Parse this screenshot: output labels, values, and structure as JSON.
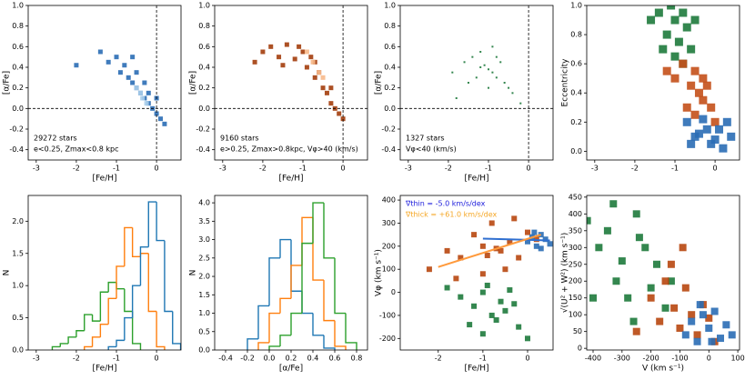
{
  "chart_data": [
    {
      "type": "scatter",
      "xlabel": "[Fe/H]",
      "ylabel": "[α/Fe]",
      "xlim": [
        -3.2,
        0.61
      ],
      "ylim": [
        -0.5,
        1.0
      ],
      "xticks": [
        -3,
        -2,
        -1,
        0
      ],
      "yticks": [
        -0.4,
        -0.2,
        {
          "value": 0,
          "label": "0.0"
        },
        0.2,
        0.4,
        0.6,
        0.8,
        {
          "value": 1,
          "label": "1.0"
        }
      ],
      "hlines": [
        0
      ],
      "vlines": [
        0
      ],
      "marker_size": 5,
      "annotation_corner": "lower left",
      "annotations": [
        {
          "text": "29272 stars",
          "color": "#000000"
        },
        {
          "text": "e<0.25, Zmax<0.8 kpc",
          "color": "#000000"
        }
      ],
      "series": [
        {
          "color": "#2a6db5",
          "x": [
            -1.2,
            -1.0,
            -0.9,
            -0.8,
            -0.7,
            -0.6,
            -0.5,
            -0.4,
            -0.3,
            -0.2,
            -0.1,
            0.0,
            0.1,
            0.2,
            -0.5,
            -0.3,
            -0.6,
            -0.2,
            0.0,
            -1.4,
            -2.0
          ],
          "y": [
            0.45,
            0.5,
            0.35,
            0.42,
            0.3,
            0.25,
            0.35,
            0.15,
            0.1,
            0.05,
            0.0,
            -0.05,
            -0.1,
            -0.15,
            0.2,
            0.25,
            0.5,
            0.15,
            0.1,
            0.55,
            0.42
          ]
        },
        {
          "color": "#a9cdea",
          "x": [
            -0.5,
            -0.35,
            -0.25,
            -0.4
          ],
          "y": [
            0.2,
            0.1,
            0.05,
            0.15
          ]
        }
      ]
    },
    {
      "type": "scatter",
      "xlabel": "[Fe/H]",
      "ylabel": "[α/Fe]",
      "xlim": [
        -3.2,
        0.61
      ],
      "ylim": [
        -0.5,
        1.0
      ],
      "xticks": [
        -3,
        -2,
        -1,
        0
      ],
      "yticks": [
        -0.4,
        -0.2,
        {
          "value": 0,
          "label": "0.0"
        },
        0.2,
        0.4,
        0.6,
        0.8,
        {
          "value": 1,
          "label": "1.0"
        }
      ],
      "hlines": [
        0
      ],
      "vlines": [
        0
      ],
      "marker_size": 5,
      "annotation_corner": "lower left",
      "annotations": [
        {
          "text": "9160 stars",
          "color": "#000000"
        },
        {
          "text": "e>0.25, Zmax>0.8kpc, Vφ>40 (km/s)",
          "color": "#000000"
        }
      ],
      "series": [
        {
          "color": "#a33d0c",
          "x": [
            -2.0,
            -1.8,
            -1.6,
            -1.4,
            -1.2,
            -1.0,
            -0.9,
            -0.8,
            -0.7,
            -0.6,
            -0.5,
            -0.4,
            -0.3,
            -0.2,
            -0.1,
            0.0,
            -1.5,
            -1.1,
            -0.7,
            -0.3,
            -2.2
          ],
          "y": [
            0.55,
            0.6,
            0.5,
            0.62,
            0.48,
            0.55,
            0.4,
            0.5,
            0.3,
            0.35,
            0.2,
            0.15,
            0.05,
            0.0,
            -0.05,
            -0.1,
            0.42,
            0.6,
            0.45,
            0.2,
            0.45
          ]
        },
        {
          "color": "#f7b98b",
          "x": [
            -0.9,
            -0.75,
            -0.6,
            -0.5
          ],
          "y": [
            0.55,
            0.45,
            0.35,
            0.3
          ]
        }
      ]
    },
    {
      "type": "scatter",
      "xlabel": "[Fe/H]",
      "ylabel": "[α/Fe]",
      "xlim": [
        -3.2,
        0.61
      ],
      "ylim": [
        -0.5,
        1.0
      ],
      "xticks": [
        -3,
        -2,
        -1,
        0
      ],
      "yticks": [
        -0.4,
        -0.2,
        {
          "value": 0,
          "label": "0.0"
        },
        0.2,
        0.4,
        0.6,
        0.8,
        {
          "value": 1,
          "label": "1.0"
        }
      ],
      "hlines": [
        0
      ],
      "vlines": [
        0
      ],
      "marker_size": 2,
      "annotation_corner": "lower left",
      "annotations": [
        {
          "text": "1327 stars",
          "color": "#000000"
        },
        {
          "text": "Vφ<40 (km/s)",
          "color": "#000000"
        }
      ],
      "series": [
        {
          "color": "#1e7a3c",
          "x": [
            -1.9,
            -1.6,
            -1.4,
            -1.3,
            -1.2,
            -1.1,
            -1.0,
            -0.9,
            -0.8,
            -0.7,
            -0.6,
            -0.5,
            -1.5,
            -1.0,
            -0.8,
            -1.2,
            -0.4,
            -0.2,
            -1.8,
            -0.9
          ],
          "y": [
            0.35,
            0.45,
            0.5,
            0.3,
            0.55,
            0.42,
            0.38,
            0.6,
            0.3,
            0.45,
            0.25,
            0.2,
            0.25,
            0.2,
            0.5,
            0.4,
            0.15,
            0.05,
            0.1,
            0.35
          ]
        }
      ]
    },
    {
      "type": "scatter",
      "ylabel": "Eccentricity",
      "xlim": [
        -3.2,
        0.61
      ],
      "ylim": [
        -0.06,
        1.0
      ],
      "xticks": [
        -3,
        -2,
        -1,
        0
      ],
      "yticks": [
        {
          "value": 0,
          "label": "0.0"
        },
        0.2,
        0.4,
        0.6,
        0.8,
        {
          "value": 1,
          "label": "1.0"
        }
      ],
      "marker_size": 9,
      "series": [
        {
          "color": "#1e7a3c",
          "x": [
            -1.6,
            -1.4,
            -1.2,
            -1.1,
            -1.0,
            -0.9,
            -0.8,
            -0.7,
            -0.6,
            -0.5,
            -1.3,
            -1.0,
            -0.8
          ],
          "y": [
            0.9,
            0.95,
            0.8,
            1.0,
            0.9,
            0.75,
            0.95,
            0.85,
            0.7,
            0.9,
            0.7,
            0.65,
            0.6
          ]
        },
        {
          "color": "#c4501a",
          "x": [
            -1.2,
            -1.0,
            -0.8,
            -0.6,
            -0.5,
            -0.4,
            -0.3,
            -0.2,
            -0.7,
            -0.5,
            -0.3,
            -0.1,
            0.0
          ],
          "y": [
            0.55,
            0.5,
            0.6,
            0.45,
            0.55,
            0.4,
            0.35,
            0.45,
            0.3,
            0.25,
            0.5,
            0.3,
            0.2
          ]
        },
        {
          "color": "#2a6db5",
          "x": [
            -0.7,
            -0.5,
            -0.3,
            -0.1,
            0.1,
            0.3,
            0.4,
            -0.6,
            -0.4,
            -0.2,
            0.0,
            0.2
          ],
          "y": [
            0.2,
            0.1,
            0.22,
            0.05,
            0.15,
            0.2,
            0.1,
            0.05,
            0.12,
            0.15,
            0.08,
            0.02
          ]
        }
      ]
    },
    {
      "type": "histogram",
      "xlabel": "[Fe/H]",
      "ylabel": "N",
      "xlim": [
        -3.2,
        0.61
      ],
      "ylim": [
        0,
        2.4
      ],
      "xticks": [
        -3,
        -2,
        -1,
        0
      ],
      "yticks": [
        {
          "value": 0,
          "label": "0.0"
        },
        0.5,
        {
          "value": 1,
          "label": "1.0"
        },
        1.5,
        {
          "value": 2,
          "label": "2.0"
        }
      ],
      "series": [
        {
          "color": "#2ca02c",
          "bins": [
            -2.6,
            -2.4,
            -2.2,
            -2.0,
            -1.8,
            -1.6,
            -1.4,
            -1.2,
            -1.0,
            -0.8,
            -0.6,
            -0.4
          ],
          "values": [
            0.05,
            0.1,
            0.2,
            0.3,
            0.55,
            0.45,
            0.9,
            1.05,
            0.95,
            0.6,
            0.1
          ]
        },
        {
          "color": "#ff7f0e",
          "bins": [
            -1.8,
            -1.6,
            -1.4,
            -1.2,
            -1.0,
            -0.8,
            -0.6,
            -0.4,
            -0.2,
            0.0,
            0.2
          ],
          "values": [
            0.05,
            0.2,
            0.4,
            0.8,
            1.3,
            1.9,
            1.45,
            1.5,
            0.6,
            0.05
          ]
        },
        {
          "color": "#1f77b4",
          "bins": [
            -1.2,
            -1.0,
            -0.8,
            -0.6,
            -0.4,
            -0.2,
            0.0,
            0.2,
            0.4,
            0.6
          ],
          "values": [
            0.05,
            0.15,
            0.5,
            1.0,
            1.6,
            2.3,
            1.7,
            0.6,
            0.1
          ]
        }
      ]
    },
    {
      "type": "histogram",
      "xlabel": "[α/Fe]",
      "ylabel": "N",
      "xlim": [
        -0.5,
        0.9
      ],
      "ylim": [
        0,
        4.2
      ],
      "xticks": [
        -0.4,
        -0.2,
        {
          "value": 0,
          "label": "0.0"
        },
        0.2,
        0.4,
        0.6,
        0.8
      ],
      "yticks": [
        {
          "value": 0,
          "label": "0.0"
        },
        0.5,
        {
          "value": 1,
          "label": "1.0"
        },
        1.5,
        {
          "value": 2,
          "label": "2.0"
        },
        2.5,
        {
          "value": 3,
          "label": "3.0"
        },
        3.5,
        {
          "value": 4,
          "label": "4.0"
        }
      ],
      "series": [
        {
          "color": "#1f77b4",
          "bins": [
            -0.2,
            -0.1,
            0.0,
            0.1,
            0.2,
            0.3,
            0.4,
            0.5,
            0.6
          ],
          "values": [
            0.3,
            1.2,
            2.5,
            3.0,
            1.6,
            1.0,
            0.4,
            0.05
          ]
        },
        {
          "color": "#ff7f0e",
          "bins": [
            -0.1,
            0.0,
            0.1,
            0.2,
            0.3,
            0.4,
            0.5,
            0.6,
            0.7
          ],
          "values": [
            0.2,
            1.0,
            1.4,
            2.3,
            3.6,
            1.9,
            0.8,
            0.1
          ]
        },
        {
          "color": "#2ca02c",
          "bins": [
            0.0,
            0.1,
            0.2,
            0.3,
            0.4,
            0.5,
            0.6,
            0.7,
            0.8
          ],
          "values": [
            0.1,
            0.4,
            1.0,
            2.9,
            4.0,
            2.5,
            1.0,
            0.2
          ]
        }
      ]
    },
    {
      "type": "scatter",
      "xlabel": "[Fe/H]",
      "ylabel": "Vφ (km s⁻¹)",
      "xlim": [
        -2.85,
        0.57
      ],
      "ylim": [
        -250,
        420
      ],
      "xticks": [
        -2,
        -1,
        0
      ],
      "yticks": [
        -200,
        -100,
        0,
        100,
        200,
        300,
        400
      ],
      "marker_size": 6,
      "annotation_corner": "upper left",
      "annotations": [
        {
          "text": "∇thin = -5.0 km/s/dex",
          "color": "#1a1adb"
        },
        {
          "text": "∇thick = +61.0 km/s/dex",
          "color": "#f5a623"
        }
      ],
      "series": [
        {
          "color": "#b8470f",
          "x": [
            -2.2,
            -1.8,
            -1.5,
            -1.2,
            -1.0,
            -0.8,
            -0.6,
            -0.4,
            -0.2,
            0.0,
            0.2,
            -1.6,
            -1.0,
            -0.5,
            -0.3,
            -0.9,
            -0.7
          ],
          "y": [
            100,
            180,
            150,
            250,
            200,
            300,
            180,
            220,
            150,
            260,
            230,
            60,
            80,
            100,
            320,
            160,
            190
          ]
        },
        {
          "color": "#1e7a3c",
          "x": [
            -1.8,
            -1.5,
            -1.2,
            -1.0,
            -0.8,
            -0.6,
            -0.4,
            -0.2,
            -1.0,
            -0.7,
            -0.5,
            -1.3,
            -0.9,
            -0.3,
            0.0
          ],
          "y": [
            20,
            -20,
            -60,
            0,
            -100,
            -40,
            10,
            -150,
            -180,
            -120,
            -80,
            -140,
            30,
            -50,
            -200
          ]
        },
        {
          "color": "#2a6db5",
          "x": [
            0.0,
            0.1,
            0.2,
            0.3,
            0.4,
            0.5,
            0.15,
            0.3
          ],
          "y": [
            220,
            240,
            200,
            250,
            230,
            210,
            260,
            190
          ]
        }
      ],
      "lines": [
        {
          "color": "#2f6fd0",
          "x": [
            -1.0,
            0.5
          ],
          "y": [
            233,
            225
          ]
        },
        {
          "color": "#ff9a3c",
          "x": [
            -2.0,
            0.3
          ],
          "y": [
            110,
            250
          ]
        }
      ]
    },
    {
      "type": "scatter",
      "xlabel": "V (km s⁻¹)",
      "ylabel": "√(U² + W²) (km s⁻¹)",
      "xlim": [
        -422,
        106
      ],
      "ylim": [
        -5,
        455
      ],
      "xticks": [
        -400,
        -300,
        -200,
        -100,
        0,
        100
      ],
      "yticks": [
        0,
        50,
        100,
        150,
        200,
        250,
        300,
        350,
        400,
        450
      ],
      "marker_size": 8,
      "series": [
        {
          "color": "#1e7a3c",
          "x": [
            -420,
            -380,
            -350,
            -320,
            -300,
            -280,
            -250,
            -220,
            -200,
            -180,
            -150,
            -130,
            -400,
            -330,
            -260,
            -240
          ],
          "y": [
            380,
            300,
            350,
            200,
            260,
            150,
            400,
            300,
            180,
            250,
            120,
            200,
            150,
            430,
            80,
            330
          ]
        },
        {
          "color": "#b8470f",
          "x": [
            -250,
            -200,
            -170,
            -150,
            -120,
            -100,
            -80,
            -60,
            -40,
            -20,
            0,
            20,
            -130,
            -90
          ],
          "y": [
            50,
            150,
            80,
            200,
            120,
            60,
            180,
            100,
            40,
            130,
            90,
            20,
            250,
            300
          ]
        },
        {
          "color": "#2a6db5",
          "x": [
            -80,
            -60,
            -40,
            -20,
            0,
            20,
            40,
            60,
            -30,
            10,
            80
          ],
          "y": [
            40,
            80,
            20,
            100,
            60,
            110,
            30,
            70,
            130,
            20,
            40
          ]
        }
      ]
    }
  ]
}
